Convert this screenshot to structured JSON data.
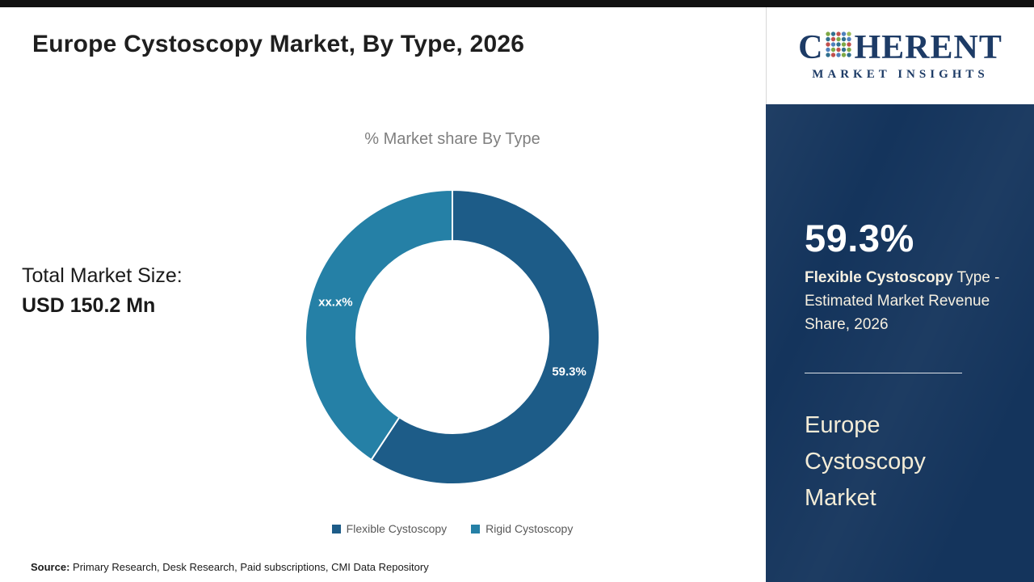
{
  "page": {
    "title": "Europe Cystoscopy Market, By Type, 2026",
    "total_market_label": "Total Market Size:",
    "total_market_value": "USD 150.2 Mn",
    "source_label": "Source:",
    "source_text": " Primary Research, Desk Research, Paid subscriptions, CMI Data Repository"
  },
  "chart_data": {
    "type": "pie",
    "donut": true,
    "title": "% Market share By Type",
    "categories": [
      "Flexible Cystoscopy",
      "Rigid Cystoscopy"
    ],
    "values": [
      59.3,
      40.7
    ],
    "labels": [
      "59.3%",
      "xx.x%"
    ],
    "colors": [
      "#1d5c88",
      "#2580a6"
    ],
    "start_angle_deg": 0,
    "legend_position": "bottom"
  },
  "legend": {
    "items": [
      {
        "label": "Flexible Cystoscopy",
        "color": "#1d5c88"
      },
      {
        "label": "Rigid Cystoscopy",
        "color": "#2580a6"
      }
    ]
  },
  "sidebar": {
    "logo_c": "C",
    "logo_rest": "HERENT",
    "logo_sub": "MARKET INSIGHTS",
    "stat_value": "59.3%",
    "stat_desc_bold": "Flexible Cystoscopy",
    "stat_desc_rest": " Type - Estimated Market Revenue Share, 2026",
    "panel_title": "Europe Cystoscopy Market",
    "colors": {
      "panel_bg": "#14345c",
      "accent_text": "#f3ecd7"
    }
  }
}
